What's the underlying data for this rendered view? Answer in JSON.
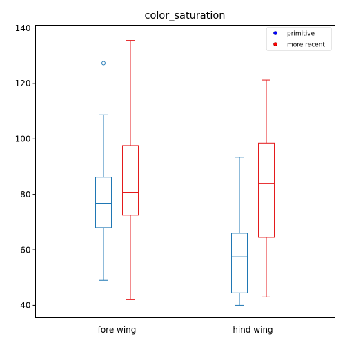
{
  "chart_data": {
    "type": "box",
    "title": "color_saturation",
    "xlabel": "",
    "ylabel": "",
    "categories": [
      "fore wing",
      "hind wing"
    ],
    "ylim": [
      35.5,
      141
    ],
    "yticks": [
      40,
      60,
      80,
      100,
      120,
      140
    ],
    "grid": false,
    "legend_position": "top-right",
    "series": [
      {
        "name": "primitive",
        "color": "#1f77b4",
        "boxes": [
          {
            "whisker_low": 49,
            "q1": 68,
            "median": 76.8,
            "q3": 86.2,
            "whisker_high": 108.7,
            "outliers": [
              127.3
            ]
          },
          {
            "whisker_low": 40,
            "q1": 44.5,
            "median": 57.5,
            "q3": 66,
            "whisker_high": 93.4,
            "outliers": []
          }
        ]
      },
      {
        "name": "more recent",
        "color": "#e41a1c",
        "boxes": [
          {
            "whisker_low": 42,
            "q1": 72.5,
            "median": 80.8,
            "q3": 97.6,
            "whisker_high": 135.5,
            "outliers": []
          },
          {
            "whisker_low": 43,
            "q1": 64.5,
            "median": 84,
            "q3": 98.5,
            "whisker_high": 121.2,
            "outliers": []
          }
        ]
      }
    ],
    "legend_marker_colors": {
      "primitive": "#0000ff",
      "more recent": "#ff0000"
    }
  }
}
